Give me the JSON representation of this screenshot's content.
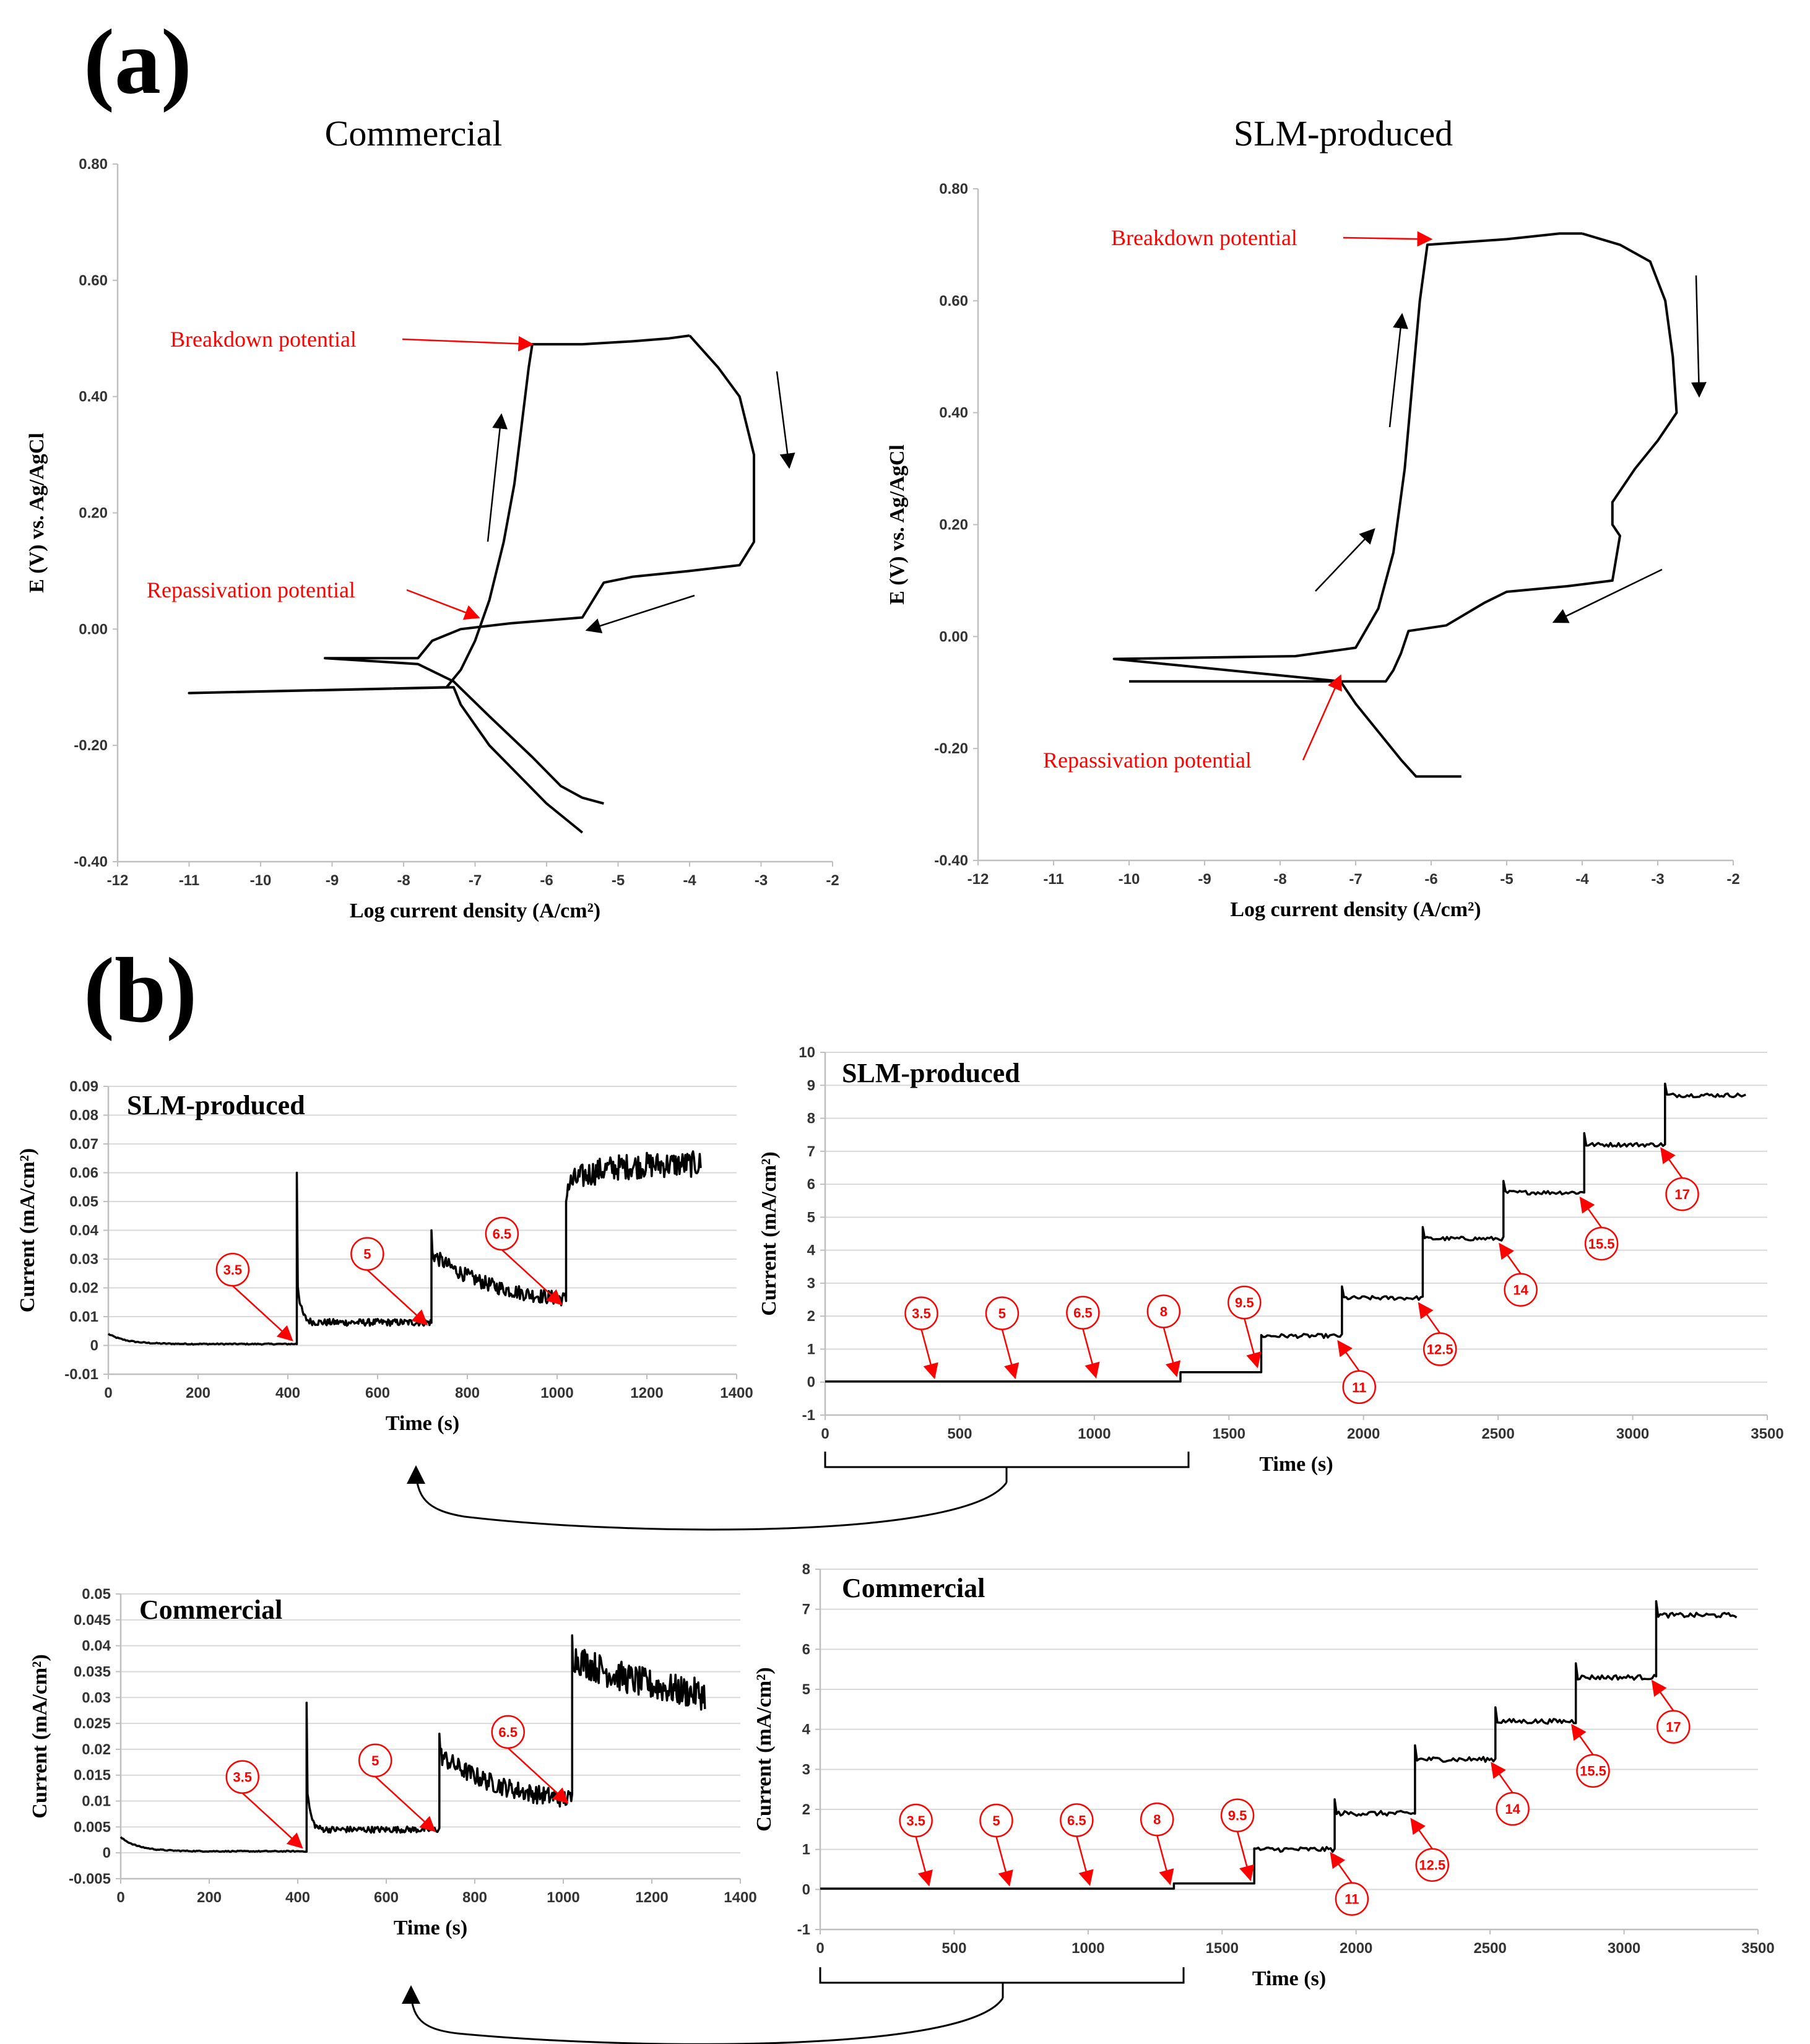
{
  "panel_labels": {
    "a": "(a)",
    "b": "(b)"
  },
  "colors": {
    "line": "#000000",
    "annotation": "#ff0000",
    "grid": "#d9d9d9",
    "axis": "#bfbfbf"
  },
  "chart_data": [
    {
      "id": "pol_commercial",
      "type": "line",
      "title": "Commercial",
      "xlabel": "Log current density (A/cm²)",
      "ylabel": "E (V) vs. Ag/AgCl",
      "xlim": [
        -12,
        -2
      ],
      "ylim": [
        -0.4,
        0.8
      ],
      "xticks": [
        -12,
        -11,
        -10,
        -9,
        -8,
        -7,
        -6,
        -5,
        -4,
        -3,
        -2
      ],
      "yticks": [
        -0.4,
        -0.2,
        0,
        0.2,
        0.4,
        0.6,
        0.8
      ],
      "ytick_labels": [
        "-0.40",
        "-0.20",
        "0.00",
        "0.20",
        "0.40",
        "0.60",
        "0.80"
      ],
      "grid": false,
      "series": [
        {
          "name": "forward",
          "points": [
            [
              -5.5,
              -0.35
            ],
            [
              -6.0,
              -0.3
            ],
            [
              -6.4,
              -0.25
            ],
            [
              -6.8,
              -0.2
            ],
            [
              -7.2,
              -0.13
            ],
            [
              -7.3,
              -0.1
            ],
            [
              -11.0,
              -0.11
            ],
            [
              -7.4,
              -0.1
            ],
            [
              -7.2,
              -0.07
            ],
            [
              -7.0,
              -0.02
            ],
            [
              -6.8,
              0.05
            ],
            [
              -6.6,
              0.15
            ],
            [
              -6.45,
              0.25
            ],
            [
              -6.35,
              0.35
            ],
            [
              -6.25,
              0.45
            ],
            [
              -6.2,
              0.49
            ],
            [
              -5.5,
              0.49
            ],
            [
              -4.8,
              0.495
            ],
            [
              -4.3,
              0.5
            ],
            [
              -4.0,
              0.505
            ]
          ]
        },
        {
          "name": "reverse",
          "points": [
            [
              -4.0,
              0.505
            ],
            [
              -3.6,
              0.45
            ],
            [
              -3.3,
              0.4
            ],
            [
              -3.2,
              0.35
            ],
            [
              -3.1,
              0.3
            ],
            [
              -3.1,
              0.2
            ],
            [
              -3.1,
              0.15
            ],
            [
              -3.3,
              0.11
            ],
            [
              -4.0,
              0.1
            ],
            [
              -4.8,
              0.09
            ],
            [
              -5.2,
              0.08
            ],
            [
              -5.5,
              0.02
            ],
            [
              -6.5,
              0.01
            ],
            [
              -7.2,
              0.0
            ],
            [
              -7.6,
              -0.02
            ],
            [
              -7.8,
              -0.05
            ],
            [
              -9.1,
              -0.05
            ],
            [
              -7.8,
              -0.06
            ],
            [
              -7.3,
              -0.09
            ],
            [
              -6.8,
              -0.15
            ],
            [
              -6.2,
              -0.22
            ],
            [
              -5.8,
              -0.27
            ],
            [
              -5.5,
              -0.29
            ],
            [
              -5.2,
              -0.3
            ]
          ]
        }
      ],
      "annotations": [
        {
          "text": "Breakdown potential",
          "x": -6.2,
          "y": 0.49
        },
        {
          "text": "Repassivation potential",
          "x": -6.95,
          "y": 0.02
        }
      ]
    },
    {
      "id": "pol_slm",
      "type": "line",
      "title": "SLM-produced",
      "xlabel": "Log current density (A/cm²)",
      "ylabel": "E (V) vs. Ag/AgCl",
      "xlim": [
        -12,
        -2
      ],
      "ylim": [
        -0.4,
        0.8
      ],
      "xticks": [
        -12,
        -11,
        -10,
        -9,
        -8,
        -7,
        -6,
        -5,
        -4,
        -3,
        -2
      ],
      "yticks": [
        -0.4,
        -0.2,
        0,
        0.2,
        0.4,
        0.6,
        0.8
      ],
      "ytick_labels": [
        "-0.40",
        "-0.20",
        "0.00",
        "0.20",
        "0.40",
        "0.60",
        "0.80"
      ],
      "grid": false,
      "series": [
        {
          "name": "forward",
          "points": [
            [
              -5.6,
              -0.25
            ],
            [
              -6.2,
              -0.25
            ],
            [
              -6.4,
              -0.22
            ],
            [
              -6.7,
              -0.17
            ],
            [
              -7.0,
              -0.12
            ],
            [
              -7.2,
              -0.08
            ],
            [
              -10.2,
              -0.04
            ],
            [
              -7.8,
              -0.035
            ],
            [
              -7.0,
              -0.02
            ],
            [
              -6.7,
              0.05
            ],
            [
              -6.5,
              0.15
            ],
            [
              -6.35,
              0.3
            ],
            [
              -6.25,
              0.45
            ],
            [
              -6.15,
              0.6
            ],
            [
              -6.05,
              0.7
            ],
            [
              -5.0,
              0.71
            ],
            [
              -4.3,
              0.72
            ],
            [
              -4.0,
              0.72
            ]
          ]
        },
        {
          "name": "reverse",
          "points": [
            [
              -4.0,
              0.72
            ],
            [
              -3.5,
              0.7
            ],
            [
              -3.1,
              0.67
            ],
            [
              -2.9,
              0.6
            ],
            [
              -2.8,
              0.5
            ],
            [
              -2.75,
              0.4
            ],
            [
              -3.0,
              0.35
            ],
            [
              -3.3,
              0.3
            ],
            [
              -3.6,
              0.24
            ],
            [
              -3.6,
              0.2
            ],
            [
              -3.5,
              0.18
            ],
            [
              -3.6,
              0.1
            ],
            [
              -4.2,
              0.09
            ],
            [
              -5.0,
              0.08
            ],
            [
              -5.3,
              0.06
            ],
            [
              -5.8,
              0.02
            ],
            [
              -6.3,
              0.01
            ],
            [
              -6.4,
              -0.03
            ],
            [
              -6.5,
              -0.06
            ],
            [
              -6.6,
              -0.08
            ],
            [
              -10.0,
              -0.08
            ]
          ]
        }
      ],
      "annotations": [
        {
          "text": "Breakdown potential",
          "x": -6.0,
          "y": 0.71
        },
        {
          "text": "Repassivation potential",
          "x": -7.2,
          "y": -0.07
        }
      ]
    },
    {
      "id": "slm_zoom",
      "type": "line",
      "title": "SLM-produced",
      "xlabel": "Time (s)",
      "ylabel": "Current (mA/cm²)",
      "xlim": [
        0,
        1400
      ],
      "ylim": [
        -0.01,
        0.09
      ],
      "xticks": [
        0,
        200,
        400,
        600,
        800,
        1000,
        1200,
        1400
      ],
      "yticks": [
        -0.01,
        0,
        0.01,
        0.02,
        0.03,
        0.04,
        0.05,
        0.06,
        0.07,
        0.08,
        0.09
      ],
      "ytick_labels": [
        "-0.01",
        "0",
        "0.01",
        "0.02",
        "0.03",
        "0.04",
        "0.05",
        "0.06",
        "0.07",
        "0.08",
        "0.09"
      ],
      "grid": true,
      "segments": [
        {
          "t0": 0,
          "t1": 420,
          "base": 0.0005,
          "start": 0.004,
          "decay": 40,
          "noise": 0.0002
        },
        {
          "t0": 420,
          "t1": 720,
          "spike": 0.06,
          "base": 0.008,
          "start": 0.025,
          "decay": 8,
          "noise": 0.0012
        },
        {
          "t0": 720,
          "t1": 1020,
          "spike": 0.04,
          "base": 0.014,
          "start": 0.032,
          "decay": 140,
          "noise": 0.0025
        },
        {
          "t0": 1020,
          "t1": 1320,
          "spike": 0.05,
          "base": 0.063,
          "start": 0.055,
          "decay": 60,
          "noise": 0.0045
        }
      ],
      "markers": [
        {
          "label": "3.5",
          "t": 415,
          "v": 0.0005
        },
        {
          "label": "5",
          "t": 715,
          "v": 0.006
        },
        {
          "label": "6.5",
          "t": 1015,
          "v": 0.013
        }
      ]
    },
    {
      "id": "slm_full",
      "type": "line",
      "title": "SLM-produced",
      "xlabel": "Time (s)",
      "ylabel": "Current (mA/cm²)",
      "xlim": [
        0,
        3500
      ],
      "ylim": [
        -1,
        10
      ],
      "xticks": [
        0,
        500,
        1000,
        1500,
        2000,
        2500,
        3000,
        3500
      ],
      "yticks": [
        -1,
        0,
        1,
        2,
        3,
        4,
        5,
        6,
        7,
        8,
        9,
        10
      ],
      "ytick_labels": [
        "-1",
        "0",
        "1",
        "2",
        "3",
        "4",
        "5",
        "6",
        "7",
        "8",
        "9",
        "10"
      ],
      "grid": true,
      "steps": [
        {
          "t0": 0,
          "t1": 1320,
          "level": 0.02
        },
        {
          "t0": 1320,
          "t1": 1620,
          "level": 0.3
        },
        {
          "t0": 1620,
          "t1": 1920,
          "level": 1.4
        },
        {
          "t0": 1920,
          "t1": 2220,
          "level": 2.55
        },
        {
          "t0": 2220,
          "t1": 2520,
          "level": 4.35
        },
        {
          "t0": 2520,
          "t1": 2820,
          "level": 5.75
        },
        {
          "t0": 2820,
          "t1": 3120,
          "level": 7.2
        },
        {
          "t0": 3120,
          "t1": 3420,
          "level": 8.7
        }
      ],
      "markers": [
        {
          "label": "3.5",
          "t": 415,
          "v": 0.02
        },
        {
          "label": "5",
          "t": 715,
          "v": 0.02
        },
        {
          "label": "6.5",
          "t": 1015,
          "v": 0.04
        },
        {
          "label": "8",
          "t": 1315,
          "v": 0.08
        },
        {
          "label": "9.5",
          "t": 1615,
          "v": 0.35
        },
        {
          "label": "11",
          "t": 1915,
          "v": 1.35
        },
        {
          "label": "12.5",
          "t": 2215,
          "v": 2.5
        },
        {
          "label": "14",
          "t": 2515,
          "v": 4.3
        },
        {
          "label": "15.5",
          "t": 2815,
          "v": 5.7
        },
        {
          "label": "17",
          "t": 3115,
          "v": 7.2
        }
      ]
    },
    {
      "id": "com_zoom",
      "type": "line",
      "title": "Commercial",
      "xlabel": "Time (s)",
      "ylabel": "Current (mA/cm²)",
      "xlim": [
        0,
        1400
      ],
      "ylim": [
        -0.005,
        0.05
      ],
      "xticks": [
        0,
        200,
        400,
        600,
        800,
        1000,
        1200,
        1400
      ],
      "yticks": [
        -0.005,
        0,
        0.005,
        0.01,
        0.015,
        0.02,
        0.025,
        0.03,
        0.035,
        0.04,
        0.045,
        0.05
      ],
      "ytick_labels": [
        "-0.005",
        "0",
        "0.005",
        "0.01",
        "0.015",
        "0.02",
        "0.025",
        "0.03",
        "0.035",
        "0.04",
        "0.045",
        "0.05"
      ],
      "grid": true,
      "segments": [
        {
          "t0": 0,
          "t1": 420,
          "base": 0.0003,
          "start": 0.003,
          "decay": 40,
          "noise": 0.0001
        },
        {
          "t0": 420,
          "t1": 720,
          "spike": 0.029,
          "base": 0.0045,
          "start": 0.014,
          "decay": 8,
          "noise": 0.0006
        },
        {
          "t0": 720,
          "t1": 1020,
          "spike": 0.023,
          "base": 0.009,
          "start": 0.019,
          "decay": 150,
          "noise": 0.0018
        },
        {
          "t0": 1020,
          "t1": 1320,
          "spike": 0.042,
          "base": 0.028,
          "start": 0.038,
          "decay": 220,
          "noise": 0.003
        }
      ],
      "markers": [
        {
          "label": "3.5",
          "t": 415,
          "v": 0.0003
        },
        {
          "label": "5",
          "t": 715,
          "v": 0.0035
        },
        {
          "label": "6.5",
          "t": 1015,
          "v": 0.009
        }
      ]
    },
    {
      "id": "com_full",
      "type": "line",
      "title": "Commercial",
      "xlabel": "Time (s)",
      "ylabel": "Current (mA/cm²)",
      "xlim": [
        0,
        3500
      ],
      "ylim": [
        -1,
        8
      ],
      "xticks": [
        0,
        500,
        1000,
        1500,
        2000,
        2500,
        3000,
        3500
      ],
      "yticks": [
        -1,
        0,
        1,
        2,
        3,
        4,
        5,
        6,
        7,
        8
      ],
      "ytick_labels": [
        "-1",
        "0",
        "1",
        "2",
        "3",
        "4",
        "5",
        "6",
        "7",
        "8"
      ],
      "grid": true,
      "steps": [
        {
          "t0": 0,
          "t1": 1320,
          "level": 0.02
        },
        {
          "t0": 1320,
          "t1": 1620,
          "level": 0.15
        },
        {
          "t0": 1620,
          "t1": 1920,
          "level": 1.0
        },
        {
          "t0": 1920,
          "t1": 2220,
          "level": 1.9
        },
        {
          "t0": 2220,
          "t1": 2520,
          "level": 3.25
        },
        {
          "t0": 2520,
          "t1": 2820,
          "level": 4.2
        },
        {
          "t0": 2820,
          "t1": 3120,
          "level": 5.3
        },
        {
          "t0": 3120,
          "t1": 3420,
          "level": 6.85
        }
      ],
      "markers": [
        {
          "label": "3.5",
          "t": 415,
          "v": 0.02
        },
        {
          "label": "5",
          "t": 715,
          "v": 0.02
        },
        {
          "label": "6.5",
          "t": 1015,
          "v": 0.03
        },
        {
          "label": "8",
          "t": 1315,
          "v": 0.05
        },
        {
          "label": "9.5",
          "t": 1615,
          "v": 0.15
        },
        {
          "label": "11",
          "t": 1915,
          "v": 1.0
        },
        {
          "label": "12.5",
          "t": 2215,
          "v": 1.85
        },
        {
          "label": "14",
          "t": 2515,
          "v": 3.25
        },
        {
          "label": "15.5",
          "t": 2815,
          "v": 4.2
        },
        {
          "label": "17",
          "t": 3115,
          "v": 5.3
        }
      ]
    }
  ]
}
